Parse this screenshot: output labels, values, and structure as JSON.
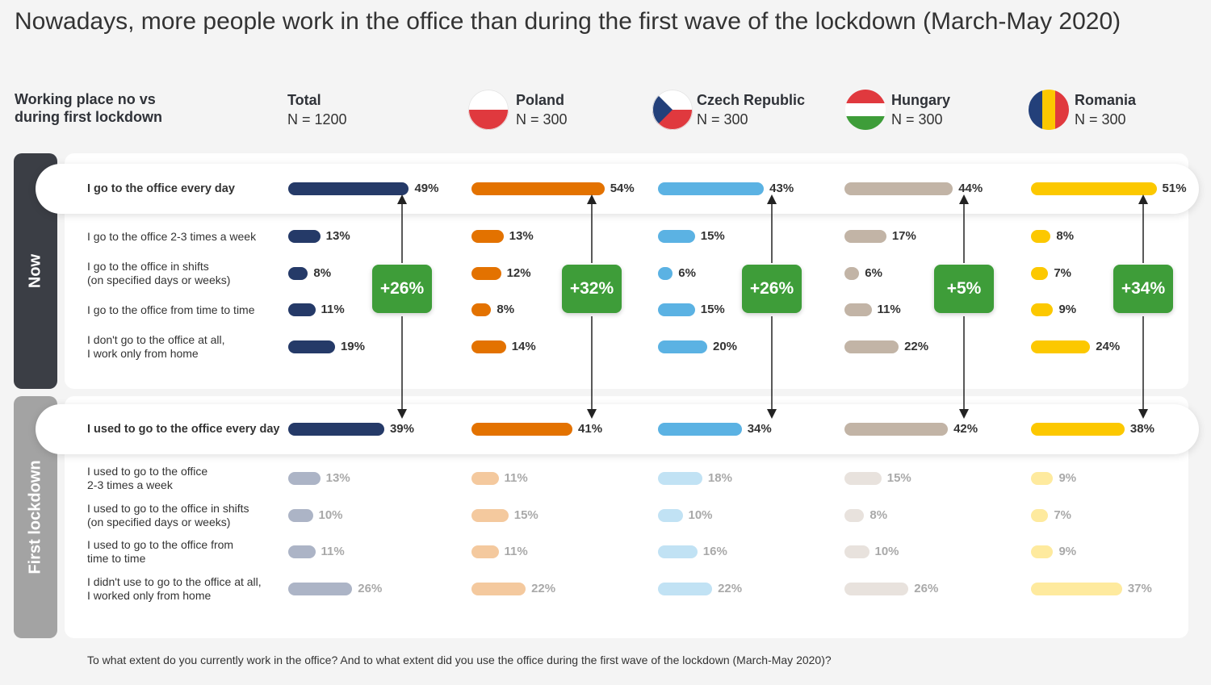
{
  "title": "Nowadays, more people work in the office than during the first wave of the lockdown (March-May 2020)",
  "header_label": "Working place no vs\nduring first lockdown",
  "side_labels": {
    "now": "Now",
    "first": "First  lockdown"
  },
  "footnote": "To what extent do you currently work in the office? And to what extent did you use the office during the first wave of the lockdown (March-May 2020)?",
  "colors": {
    "total": "#253a68",
    "poland": "#e37200",
    "czech": "#5bb2e3",
    "hungary": "#c2b4a6",
    "romania": "#fcc800",
    "badge": "#3e9d39",
    "now_tab": "#3b3e45",
    "first_tab": "#a3a3a3"
  },
  "columns": [
    {
      "key": "total",
      "name": "Total",
      "n": "N = 1200",
      "flag": null
    },
    {
      "key": "poland",
      "name": "Poland",
      "n": "N = 300",
      "flag": "poland-flag"
    },
    {
      "key": "czech",
      "name": "Czech Republic",
      "n": "N = 300",
      "flag": "czech-flag"
    },
    {
      "key": "hungary",
      "name": "Hungary",
      "n": "N = 300",
      "flag": "hungary-flag"
    },
    {
      "key": "romania",
      "name": "Romania",
      "n": "N = 300",
      "flag": "romania-flag"
    }
  ],
  "chart_data": {
    "type": "bar",
    "unit": "%",
    "series_keys": [
      "Total",
      "Poland",
      "Czech Republic",
      "Hungary",
      "Romania"
    ],
    "now": [
      {
        "label": "I go to the office every day",
        "values": [
          49,
          54,
          43,
          44,
          51
        ],
        "highlight": true
      },
      {
        "label": "I go to the office 2-3 times a week",
        "values": [
          13,
          13,
          15,
          17,
          8
        ]
      },
      {
        "label": "I go to the office in shifts\n(on specified days or weeks)",
        "values": [
          8,
          12,
          6,
          6,
          7
        ]
      },
      {
        "label": "I go to the office from time to time",
        "values": [
          11,
          8,
          15,
          11,
          9
        ]
      },
      {
        "label": "I don't go to the office at all,\nI work only from home",
        "values": [
          19,
          14,
          20,
          22,
          24
        ]
      }
    ],
    "first_lockdown": [
      {
        "label": "I used to go to the office every day",
        "values": [
          39,
          41,
          34,
          42,
          38
        ],
        "highlight": true
      },
      {
        "label": "I used to go to the office\n2-3 times a week",
        "values": [
          13,
          11,
          18,
          15,
          9
        ]
      },
      {
        "label": "I used to go to the office in shifts\n(on specified days or weeks)",
        "values": [
          10,
          15,
          10,
          8,
          7
        ]
      },
      {
        "label": "I used to go to the office from\ntime to time",
        "values": [
          11,
          11,
          16,
          10,
          9
        ]
      },
      {
        "label": "I didn't use to go to the office at all,\nI worked only from home",
        "values": [
          26,
          22,
          22,
          26,
          37
        ]
      }
    ],
    "change": [
      "+26%",
      "+32%",
      "+26%",
      "+5%",
      "+34%"
    ]
  }
}
